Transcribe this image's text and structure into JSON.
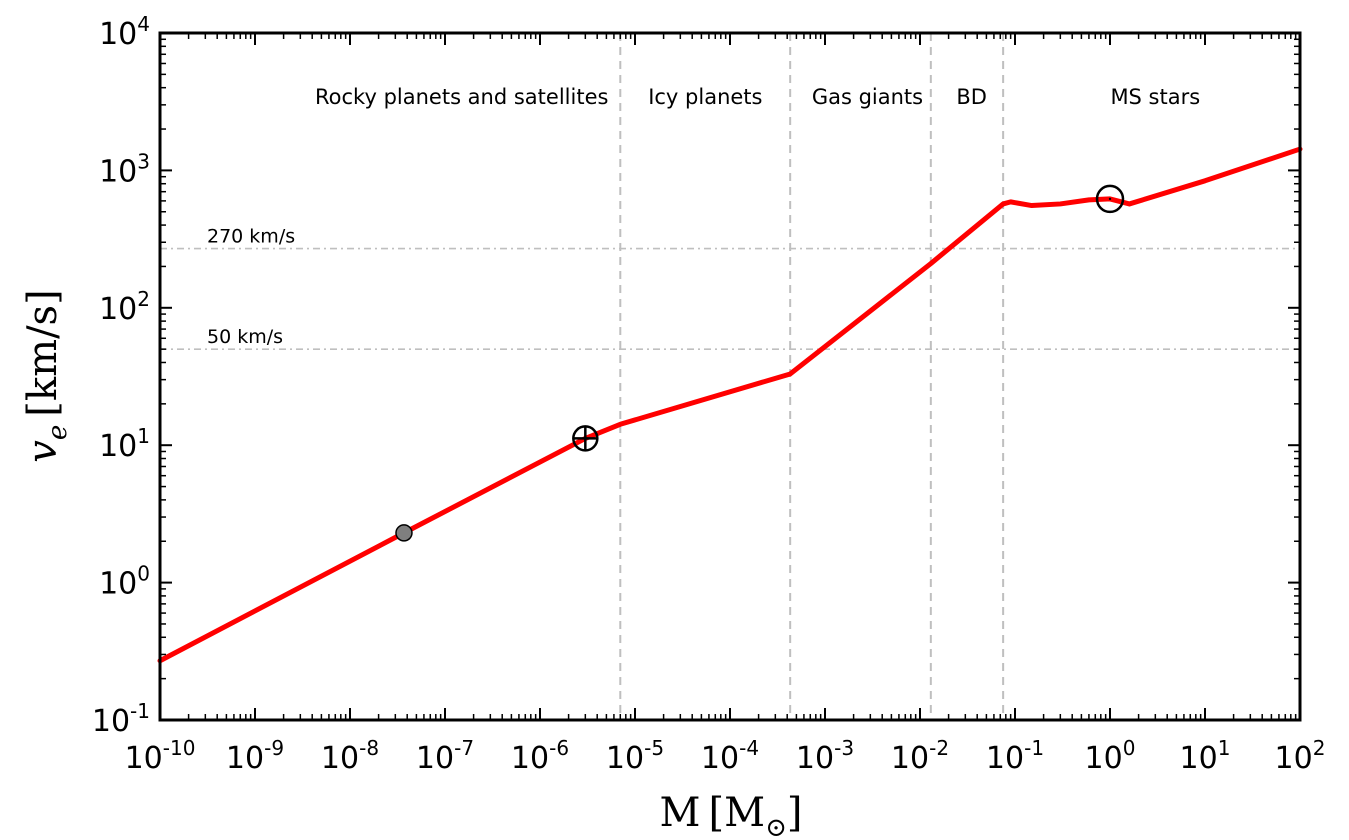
{
  "chart_data": {
    "type": "line",
    "x_scale": "log",
    "y_scale": "log",
    "xlim": [
      1e-10,
      100
    ],
    "ylim": [
      0.1,
      10000
    ],
    "xlabel": "M",
    "xlabel_unit": "M",
    "xlabel_unit_sub": "⊙",
    "ylabel": "v",
    "ylabel_sub": "e",
    "ylabel_unit": "[km/s]",
    "x_ticks": [
      {
        "base": "10",
        "exp": "-10",
        "value": 1e-10
      },
      {
        "base": "10",
        "exp": "-9",
        "value": 1e-09
      },
      {
        "base": "10",
        "exp": "-8",
        "value": 1e-08
      },
      {
        "base": "10",
        "exp": "-7",
        "value": 1e-07
      },
      {
        "base": "10",
        "exp": "-6",
        "value": 1e-06
      },
      {
        "base": "10",
        "exp": "-5",
        "value": 1e-05
      },
      {
        "base": "10",
        "exp": "-4",
        "value": 0.0001
      },
      {
        "base": "10",
        "exp": "-3",
        "value": 0.001
      },
      {
        "base": "10",
        "exp": "-2",
        "value": 0.01
      },
      {
        "base": "10",
        "exp": "-1",
        "value": 0.1
      },
      {
        "base": "10",
        "exp": "0",
        "value": 1
      },
      {
        "base": "10",
        "exp": "1",
        "value": 10
      },
      {
        "base": "10",
        "exp": "2",
        "value": 100
      }
    ],
    "y_ticks": [
      {
        "base": "10",
        "exp": "-1",
        "value": 0.1
      },
      {
        "base": "10",
        "exp": "0",
        "value": 1
      },
      {
        "base": "10",
        "exp": "1",
        "value": 10
      },
      {
        "base": "10",
        "exp": "2",
        "value": 100
      },
      {
        "base": "10",
        "exp": "3",
        "value": 1000
      },
      {
        "base": "10",
        "exp": "4",
        "value": 10000
      }
    ],
    "regions": [
      {
        "label": "Rocky planets and satellites",
        "x_center": 1.5e-07
      },
      {
        "label": "Icy planets",
        "x_center": 5.5e-05
      },
      {
        "label": "Gas giants",
        "x_center": 0.0028
      },
      {
        "label": "BD",
        "x_center": 0.035
      },
      {
        "label": "MS stars",
        "x_center": 3.0
      }
    ],
    "boundaries": [
      7e-06,
      0.00043,
      0.013,
      0.075
    ],
    "reference_lines": [
      {
        "label": "270 km/s",
        "y": 270
      },
      {
        "label": "50 km/s",
        "y": 50
      }
    ],
    "series": [
      {
        "color": "#ff0000",
        "x": [
          1e-10,
          3.7e-08,
          3e-06,
          7e-06,
          0.00043,
          0.013,
          0.075,
          0.09,
          0.15,
          0.3,
          0.6,
          1.0,
          1.6,
          10,
          100
        ],
        "y": [
          0.27,
          2.3,
          11.2,
          14.2,
          33,
          210,
          570,
          590,
          555,
          570,
          610,
          620,
          570,
          840,
          1430
        ]
      }
    ],
    "markers": [
      {
        "symbol": "moon",
        "x": 3.7e-08,
        "y": 2.3,
        "color": "#7f7f7f"
      },
      {
        "symbol": "earth",
        "x": 3e-06,
        "y": 11.2
      },
      {
        "symbol": "sun",
        "x": 1.0,
        "y": 620
      }
    ],
    "grid": false
  }
}
